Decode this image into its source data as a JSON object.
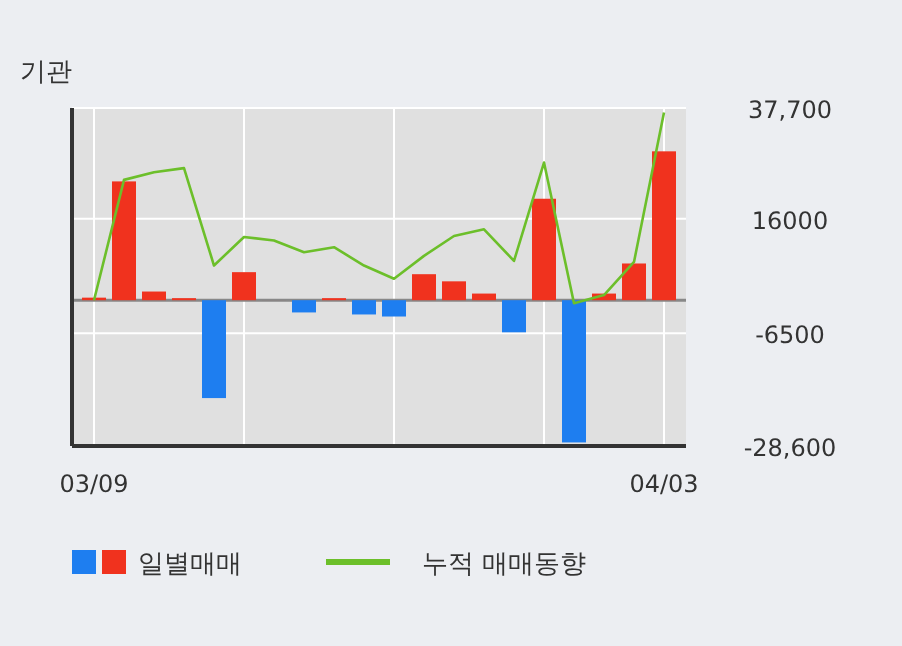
{
  "chart_data": {
    "type": "bar",
    "title": "기관",
    "categories": [
      "03/09",
      null,
      null,
      null,
      null,
      null,
      null,
      null,
      null,
      null,
      null,
      null,
      null,
      null,
      null,
      null,
      null,
      null,
      null,
      "04/03"
    ],
    "series": [
      {
        "name": "일별매매",
        "colors": [
          "#f0321e",
          "#f0321e",
          "#f0321e",
          "#f0321e",
          "#1e7ef0",
          "#f0321e",
          "#f0321e",
          "#1e7ef0",
          "#f0321e",
          "#1e7ef0",
          "#1e7ef0",
          "#f0321e",
          "#f0321e",
          "#f0321e",
          "#1e7ef0",
          "#f0321e",
          "#1e7ef0",
          "#f0321e",
          "#f0321e",
          "#f0321e"
        ],
        "values": [
          500,
          23300,
          1700,
          400,
          -19200,
          5500,
          0,
          -2400,
          400,
          -2800,
          -3200,
          5100,
          3700,
          1300,
          -6300,
          19900,
          -27900,
          1300,
          7200,
          29200
        ]
      },
      {
        "name": "누적 매매동향",
        "type": "line",
        "color": "#6cbf2a",
        "values": [
          0,
          23600,
          25100,
          25900,
          6800,
          12400,
          11700,
          9400,
          10400,
          6800,
          4200,
          8700,
          12600,
          13900,
          7700,
          27000,
          -600,
          1000,
          7500,
          36800
        ]
      }
    ],
    "ylim": [
      -28600,
      37700
    ],
    "yticks": [
      {
        "value": 37700,
        "label": "37,700"
      },
      16000,
      {
        "value": -6500,
        "label": "-6500"
      },
      {
        "value": -28600,
        "label": "-28,600"
      }
    ],
    "grid": true,
    "legend": "bottom"
  }
}
